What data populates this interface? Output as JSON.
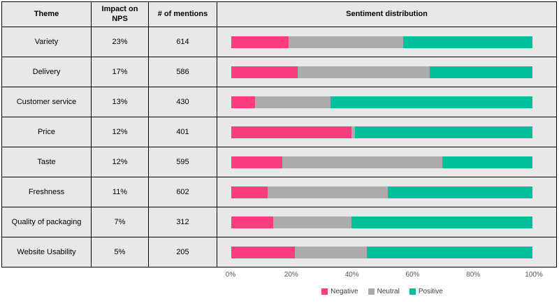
{
  "table": {
    "headers": [
      "Theme",
      "Impact on NPS",
      "# of mentions",
      "Sentiment distribution"
    ],
    "rows": [
      {
        "theme": "Variety",
        "impact_nps": "23%",
        "mentions": "614"
      },
      {
        "theme": "Delivery",
        "impact_nps": "17%",
        "mentions": "586"
      },
      {
        "theme": "Customer service",
        "impact_nps": "13%",
        "mentions": "430"
      },
      {
        "theme": "Price",
        "impact_nps": "12%",
        "mentions": "401"
      },
      {
        "theme": "Taste",
        "impact_nps": "12%",
        "mentions": "595"
      },
      {
        "theme": "Freshness",
        "impact_nps": "11%",
        "mentions": "602"
      },
      {
        "theme": "Quality of packaging",
        "impact_nps": "7%",
        "mentions": "312"
      },
      {
        "theme": "Website Usability",
        "impact_nps": "5%",
        "mentions": "205"
      }
    ]
  },
  "chart_data": {
    "type": "bar",
    "stacked": true,
    "orientation": "horizontal",
    "title": "Sentiment distribution",
    "categories": [
      "Variety",
      "Delivery",
      "Customer service",
      "Price",
      "Taste",
      "Freshness",
      "Quality of packaging",
      "Website Usability"
    ],
    "series": [
      {
        "name": "Negative",
        "color": "#FB3C7F",
        "values": [
          19,
          22,
          8,
          40,
          17,
          12,
          14,
          21
        ]
      },
      {
        "name": "Neutral",
        "color": "#ABABAB",
        "values": [
          38,
          44,
          25,
          1,
          53,
          40,
          26,
          24
        ]
      },
      {
        "name": "Positive",
        "color": "#00BF9A",
        "values": [
          43,
          34,
          67,
          59,
          30,
          48,
          60,
          55
        ]
      }
    ],
    "x_ticks": [
      "0%",
      "20%",
      "40%",
      "60%",
      "80%",
      "100%"
    ],
    "xlim": [
      0,
      100
    ],
    "legend": [
      {
        "label": "Negative",
        "color": "#FB3C7F"
      },
      {
        "label": "Neutral",
        "color": "#ABABAB"
      },
      {
        "label": "Positive",
        "color": "#00BF9A"
      }
    ],
    "legend_position": "bottom"
  },
  "colors": {
    "negative": "#FB3C7F",
    "neutral": "#ABABAB",
    "positive": "#00BF9A",
    "cell_bg": "#E9E8E8",
    "border": "#000000"
  }
}
